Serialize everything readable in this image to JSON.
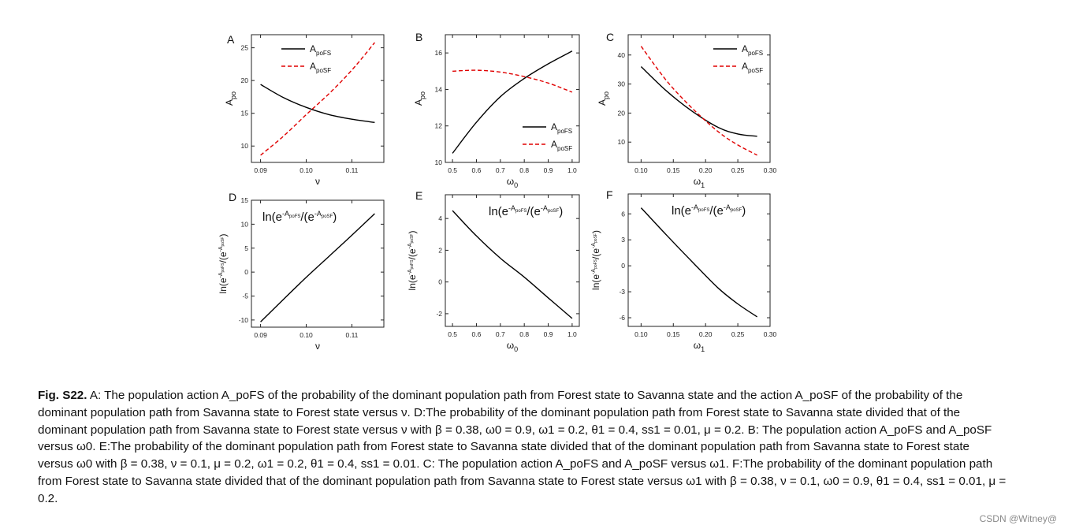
{
  "chart_data": [
    {
      "panel": "A",
      "type": "line",
      "xlabel": "ν",
      "ylabel": "A_po",
      "xlim": [
        0.088,
        0.117
      ],
      "ylim": [
        7.5,
        27
      ],
      "xticks": [
        "0.09",
        "0.10",
        "0.11"
      ],
      "xtick_values": [
        0.09,
        0.1,
        0.11
      ],
      "yticks": [
        "10",
        "15",
        "20",
        "25"
      ],
      "ytick_values": [
        10,
        15,
        20,
        25
      ],
      "legend_position": "top-right",
      "series": [
        {
          "name": "A_poFS",
          "style": "solid",
          "color": "#000000",
          "x": [
            0.09,
            0.095,
            0.1,
            0.105,
            0.11,
            0.115
          ],
          "y": [
            19.4,
            17.4,
            15.9,
            14.8,
            14.1,
            13.6
          ]
        },
        {
          "name": "A_poSF",
          "style": "dashed",
          "color": "#e00000",
          "x": [
            0.09,
            0.095,
            0.1,
            0.105,
            0.11,
            0.115
          ],
          "y": [
            8.6,
            11.5,
            14.8,
            18.0,
            21.6,
            25.8
          ]
        }
      ]
    },
    {
      "panel": "B",
      "type": "line",
      "xlabel": "ω_0",
      "ylabel": "A_po",
      "xlim": [
        0.47,
        1.03
      ],
      "ylim": [
        10,
        17
      ],
      "xticks": [
        "0.5",
        "0.6",
        "0.7",
        "0.8",
        "0.9",
        "1.0"
      ],
      "xtick_values": [
        0.5,
        0.6,
        0.7,
        0.8,
        0.9,
        1.0
      ],
      "yticks": [
        "10",
        "12",
        "14",
        "16"
      ],
      "ytick_values": [
        10,
        12,
        14,
        16
      ],
      "legend_position": "bottom-right",
      "series": [
        {
          "name": "A_poFS",
          "style": "solid",
          "color": "#000000",
          "x": [
            0.5,
            0.6,
            0.7,
            0.8,
            0.9,
            1.0
          ],
          "y": [
            10.5,
            12.2,
            13.6,
            14.6,
            15.4,
            16.1
          ]
        },
        {
          "name": "A_poSF",
          "style": "dashed",
          "color": "#e00000",
          "x": [
            0.5,
            0.6,
            0.7,
            0.8,
            0.9,
            1.0
          ],
          "y": [
            15.0,
            15.05,
            14.95,
            14.7,
            14.35,
            13.85
          ]
        }
      ]
    },
    {
      "panel": "C",
      "type": "line",
      "xlabel": "ω_1",
      "ylabel": "A_po",
      "xlim": [
        0.08,
        0.3
      ],
      "ylim": [
        3,
        47
      ],
      "xticks": [
        "0.10",
        "0.15",
        "0.20",
        "0.25",
        "0.30"
      ],
      "xtick_values": [
        0.1,
        0.15,
        0.2,
        0.25,
        0.3
      ],
      "yticks": [
        "10",
        "20",
        "30",
        "40"
      ],
      "ytick_values": [
        10,
        20,
        30,
        40
      ],
      "legend_position": "top-right",
      "series": [
        {
          "name": "A_poFS",
          "style": "solid",
          "color": "#000000",
          "x": [
            0.1,
            0.14,
            0.18,
            0.22,
            0.25,
            0.28
          ],
          "y": [
            36.0,
            27.5,
            20.5,
            15.0,
            12.8,
            12.0
          ]
        },
        {
          "name": "A_poSF",
          "style": "dashed",
          "color": "#e00000",
          "x": [
            0.1,
            0.14,
            0.18,
            0.22,
            0.25,
            0.28
          ],
          "y": [
            43.0,
            31.0,
            21.5,
            13.5,
            9.0,
            5.5
          ]
        }
      ]
    },
    {
      "panel": "D",
      "type": "line",
      "xlabel": "ν",
      "ylabel": "ln(e^{-A_poFS}/(e^{-A_poSF})",
      "annotation": "ln(e^{-A_poFS}/(e^{-A_poSF})",
      "xlim": [
        0.088,
        0.117
      ],
      "ylim": [
        -11.5,
        15
      ],
      "xticks": [
        "0.09",
        "0.10",
        "0.11"
      ],
      "xtick_values": [
        0.09,
        0.1,
        0.11
      ],
      "yticks": [
        "-10",
        "-5",
        "0",
        "5",
        "10",
        "15"
      ],
      "ytick_values": [
        -10,
        -5,
        0,
        5,
        10,
        15
      ],
      "series": [
        {
          "name": "",
          "style": "solid",
          "color": "#000000",
          "x": [
            0.09,
            0.095,
            0.1,
            0.105,
            0.11,
            0.115
          ],
          "y": [
            -10.4,
            -5.7,
            -1.1,
            3.3,
            7.7,
            12.2
          ]
        }
      ]
    },
    {
      "panel": "E",
      "type": "line",
      "xlabel": "ω_0",
      "ylabel": "ln(e^{-A_poFS}/(e^{-A_poSF})",
      "annotation": "ln(e^{-A_poFS}/(e^{-A_poSF})",
      "xlim": [
        0.47,
        1.03
      ],
      "ylim": [
        -2.8,
        5.5
      ],
      "xticks": [
        "0.5",
        "0.6",
        "0.7",
        "0.8",
        "0.9",
        "1.0"
      ],
      "xtick_values": [
        0.5,
        0.6,
        0.7,
        0.8,
        0.9,
        1.0
      ],
      "yticks": [
        "-2",
        "0",
        "2",
        "4"
      ],
      "ytick_values": [
        -2,
        0,
        2,
        4
      ],
      "series": [
        {
          "name": "",
          "style": "solid",
          "color": "#000000",
          "x": [
            0.5,
            0.6,
            0.7,
            0.8,
            0.9,
            1.0
          ],
          "y": [
            4.5,
            2.9,
            1.5,
            0.3,
            -1.0,
            -2.3
          ]
        }
      ]
    },
    {
      "panel": "F",
      "type": "line",
      "xlabel": "ω_1",
      "ylabel": "ln(e^{-A_poFS}/(e^{-A_poSF})",
      "annotation": "ln(e^{-A_poFS}/(e^{-A_poSF})",
      "xlim": [
        0.08,
        0.3
      ],
      "ylim": [
        -7,
        8.3
      ],
      "xticks": [
        "0.10",
        "0.15",
        "0.20",
        "0.25",
        "0.30"
      ],
      "xtick_values": [
        0.1,
        0.15,
        0.2,
        0.25,
        0.3
      ],
      "yticks": [
        "-6",
        "-3",
        "0",
        "3",
        "6"
      ],
      "ytick_values": [
        -6,
        -3,
        0,
        3,
        6
      ],
      "series": [
        {
          "name": "",
          "style": "solid",
          "color": "#000000",
          "x": [
            0.1,
            0.14,
            0.18,
            0.22,
            0.25,
            0.28
          ],
          "y": [
            6.7,
            3.5,
            0.4,
            -2.6,
            -4.4,
            -5.9
          ]
        }
      ]
    }
  ],
  "caption": {
    "lead": "Fig. S22.",
    "body": "A: The population action A_poFS of the probability of the dominant population path from Forest state to Savanna state and the action A_poSF of the probability of the dominant population path from Savanna state to Forest state versus ν. D:The probability of the dominant population path from Forest state to Savanna state divided that of the dominant population path from Savanna state to Forest state versus ν with β = 0.38, ω0 = 0.9, ω1 = 0.2, θ1 = 0.4, ss1 = 0.01, μ = 0.2. B: The population action A_poFS and A_poSF versus ω0. E:The probability of the dominant population path from Forest state to Savanna state divided that of the dominant population path from Savanna state to Forest state versus ω0 with β = 0.38, ν = 0.1, μ = 0.2, ω1 = 0.2, θ1 = 0.4, ss1 = 0.01. C: The population action A_poFS and A_poSF versus ω1. F:The probability of the dominant population path from Forest state to Savanna state divided that of the dominant population path from Savanna state to Forest state versus ω1 with β = 0.38, ν = 0.1, ω0 = 0.9, θ1 = 0.4, ss1 = 0.01, μ = 0.2."
  },
  "watermark": "CSDN @Witney@"
}
